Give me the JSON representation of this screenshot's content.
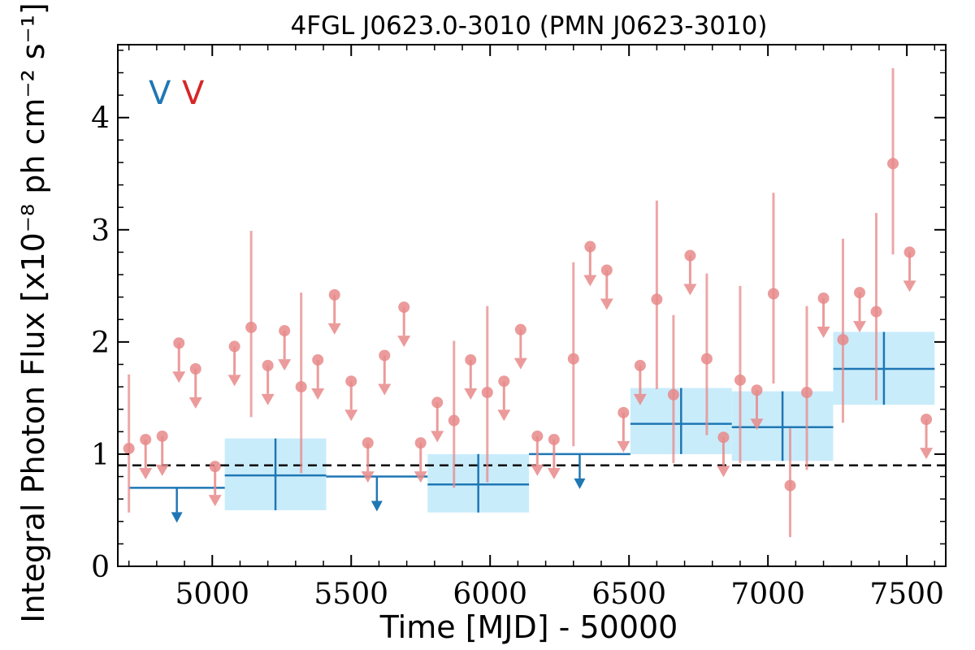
{
  "chart_data": {
    "type": "scatter",
    "title": "4FGL J0623.0-3010 (PMN J0623-3010)",
    "xlabel": "Time [MJD] - 50000",
    "ylabel": "Integral Photon Flux [x10⁻⁸ ph cm⁻² s⁻¹]",
    "xlim": [
      4660,
      7640
    ],
    "ylim": [
      0,
      4.65
    ],
    "x_ticks": [
      5000,
      5500,
      6000,
      6500,
      7000,
      7500
    ],
    "y_ticks": [
      0,
      1,
      2,
      3,
      4
    ],
    "grid": false,
    "legend": {
      "placement": "top-left",
      "entries": [
        {
          "label": "V",
          "color": "#1f77b4"
        },
        {
          "label": "V",
          "color": "#d62728"
        }
      ]
    },
    "reference_line": {
      "y": 0.9,
      "style": "dashed",
      "color": "#000000"
    },
    "colors": {
      "short_bins": "#e88a8a",
      "long_bins": "#1f77b4",
      "long_bins_band": "#c9ecfb"
    },
    "series": [
      {
        "name": "",
        "bin_width_days": 60,
        "points": [
          {
            "x": 4700,
            "y": 1.05,
            "lo": 0.48,
            "hi": 1.71
          },
          {
            "x": 4760,
            "y": 1.13,
            "ul": true
          },
          {
            "x": 4820,
            "y": 1.16,
            "ul": true
          },
          {
            "x": 4880,
            "y": 1.99,
            "ul": true
          },
          {
            "x": 4940,
            "y": 1.76,
            "ul": true
          },
          {
            "x": 5010,
            "y": 0.89,
            "ul": true
          },
          {
            "x": 5080,
            "y": 1.96,
            "ul": true
          },
          {
            "x": 5140,
            "y": 2.13,
            "lo": 1.33,
            "hi": 2.99
          },
          {
            "x": 5200,
            "y": 1.79,
            "ul": true
          },
          {
            "x": 5260,
            "y": 2.1,
            "ul": true
          },
          {
            "x": 5320,
            "y": 1.6,
            "lo": 0.83,
            "hi": 2.44
          },
          {
            "x": 5380,
            "y": 1.84,
            "ul": true
          },
          {
            "x": 5440,
            "y": 2.42,
            "ul": true
          },
          {
            "x": 5500,
            "y": 1.65,
            "ul": true
          },
          {
            "x": 5560,
            "y": 1.1,
            "ul": true
          },
          {
            "x": 5620,
            "y": 1.88,
            "ul": true
          },
          {
            "x": 5690,
            "y": 2.31,
            "ul": true
          },
          {
            "x": 5750,
            "y": 1.1,
            "ul": true
          },
          {
            "x": 5810,
            "y": 1.46,
            "ul": true
          },
          {
            "x": 5870,
            "y": 1.3,
            "lo": 0.7,
            "hi": 2.01
          },
          {
            "x": 5930,
            "y": 1.84,
            "ul": true
          },
          {
            "x": 5990,
            "y": 1.55,
            "lo": 0.75,
            "hi": 2.32
          },
          {
            "x": 6050,
            "y": 1.65,
            "ul": true
          },
          {
            "x": 6110,
            "y": 2.11,
            "ul": true
          },
          {
            "x": 6170,
            "y": 1.16,
            "ul": true
          },
          {
            "x": 6230,
            "y": 1.13,
            "ul": true
          },
          {
            "x": 6300,
            "y": 1.85,
            "lo": 1.07,
            "hi": 2.71
          },
          {
            "x": 6360,
            "y": 2.85,
            "ul": true
          },
          {
            "x": 6420,
            "y": 2.64,
            "ul": true
          },
          {
            "x": 6480,
            "y": 1.37,
            "ul": true
          },
          {
            "x": 6540,
            "y": 1.79,
            "ul": true
          },
          {
            "x": 6600,
            "y": 2.38,
            "lo": 1.58,
            "hi": 3.26
          },
          {
            "x": 6660,
            "y": 1.53,
            "lo": 0.92,
            "hi": 2.24
          },
          {
            "x": 6720,
            "y": 2.77,
            "ul": true
          },
          {
            "x": 6780,
            "y": 1.85,
            "lo": 1.17,
            "hi": 2.61
          },
          {
            "x": 6840,
            "y": 1.15,
            "ul": true
          },
          {
            "x": 6900,
            "y": 1.66,
            "lo": 0.92,
            "hi": 2.5
          },
          {
            "x": 6960,
            "y": 1.57,
            "ul": true
          },
          {
            "x": 7020,
            "y": 2.43,
            "lo": 1.63,
            "hi": 3.33
          },
          {
            "x": 7080,
            "y": 0.72,
            "lo": 0.26,
            "hi": 1.23
          },
          {
            "x": 7140,
            "y": 1.55,
            "lo": 0.86,
            "hi": 2.32
          },
          {
            "x": 7200,
            "y": 2.39,
            "ul": true
          },
          {
            "x": 7270,
            "y": 2.02,
            "lo": 1.28,
            "hi": 2.92
          },
          {
            "x": 7330,
            "y": 2.44,
            "ul": true
          },
          {
            "x": 7390,
            "y": 2.27,
            "lo": 1.48,
            "hi": 3.15
          },
          {
            "x": 7450,
            "y": 3.59,
            "lo": 2.78,
            "hi": 4.44
          },
          {
            "x": 7510,
            "y": 2.8,
            "ul": true
          },
          {
            "x": 7570,
            "y": 1.31,
            "ul": true
          }
        ]
      },
      {
        "name": "",
        "bins": [
          {
            "x0": 4700,
            "x1": 5045,
            "y": 0.7,
            "ul": true
          },
          {
            "x0": 5045,
            "x1": 5410,
            "y": 0.81,
            "lo": 0.5,
            "hi": 1.14
          },
          {
            "x0": 5410,
            "x1": 5775,
            "y": 0.8,
            "ul": true
          },
          {
            "x0": 5775,
            "x1": 6140,
            "y": 0.73,
            "lo": 0.48,
            "hi": 1.0
          },
          {
            "x0": 6140,
            "x1": 6505,
            "y": 1.0,
            "ul": true
          },
          {
            "x0": 6505,
            "x1": 6870,
            "y": 1.27,
            "lo": 1.0,
            "hi": 1.59
          },
          {
            "x0": 6870,
            "x1": 7235,
            "y": 1.24,
            "lo": 0.94,
            "hi": 1.56
          },
          {
            "x0": 7235,
            "x1": 7600,
            "y": 1.76,
            "lo": 1.44,
            "hi": 2.09
          }
        ]
      }
    ]
  }
}
